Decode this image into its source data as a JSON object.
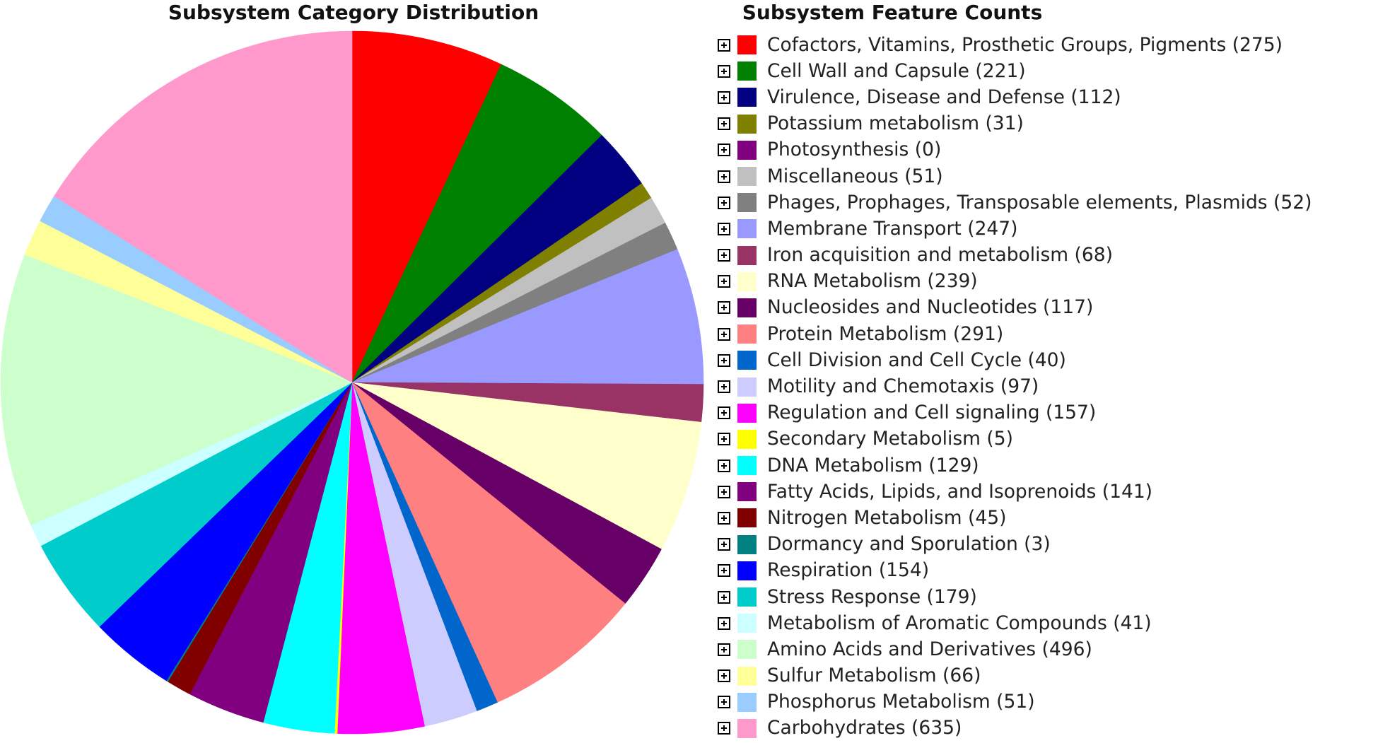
{
  "chart_data": {
    "type": "pie",
    "title": "Subsystem Category Distribution",
    "legend_title": "Subsystem Feature Counts",
    "legend_placement": "right",
    "start_angle_deg": 0,
    "direction": "clockwise",
    "slices": [
      {
        "label": "Cofactors, Vitamins, Prosthetic Groups, Pigments (275)",
        "value": 275,
        "color": "#ff0000"
      },
      {
        "label": "Cell Wall and Capsule (221)",
        "value": 221,
        "color": "#008000"
      },
      {
        "label": "Virulence, Disease and Defense (112)",
        "value": 112,
        "color": "#000080"
      },
      {
        "label": "Potassium metabolism (31)",
        "value": 31,
        "color": "#808000"
      },
      {
        "label": "Photosynthesis (0)",
        "value": 0,
        "color": "#800080"
      },
      {
        "label": "Miscellaneous (51)",
        "value": 51,
        "color": "#c0c0c0"
      },
      {
        "label": "Phages, Prophages, Transposable elements, Plasmids (52)",
        "value": 52,
        "color": "#808080"
      },
      {
        "label": "Membrane Transport (247)",
        "value": 247,
        "color": "#9999ff"
      },
      {
        "label": "Iron acquisition and metabolism (68)",
        "value": 68,
        "color": "#993366"
      },
      {
        "label": "RNA Metabolism (239)",
        "value": 239,
        "color": "#ffffcc"
      },
      {
        "label": "Nucleosides and Nucleotides (117)",
        "value": 117,
        "color": "#660066"
      },
      {
        "label": "Protein Metabolism (291)",
        "value": 291,
        "color": "#ff8080"
      },
      {
        "label": "Cell Division and Cell Cycle (40)",
        "value": 40,
        "color": "#0066cc"
      },
      {
        "label": "Motility and Chemotaxis (97)",
        "value": 97,
        "color": "#ccccff"
      },
      {
        "label": "Regulation and Cell signaling (157)",
        "value": 157,
        "color": "#ff00ff"
      },
      {
        "label": "Secondary Metabolism (5)",
        "value": 5,
        "color": "#ffff00"
      },
      {
        "label": "DNA Metabolism (129)",
        "value": 129,
        "color": "#00ffff"
      },
      {
        "label": "Fatty Acids, Lipids, and Isoprenoids (141)",
        "value": 141,
        "color": "#800080"
      },
      {
        "label": "Nitrogen Metabolism (45)",
        "value": 45,
        "color": "#800000"
      },
      {
        "label": "Dormancy and Sporulation (3)",
        "value": 3,
        "color": "#008080"
      },
      {
        "label": "Respiration (154)",
        "value": 154,
        "color": "#0000ff"
      },
      {
        "label": "Stress Response (179)",
        "value": 179,
        "color": "#00cccc"
      },
      {
        "label": "Metabolism of Aromatic Compounds (41)",
        "value": 41,
        "color": "#ccffff"
      },
      {
        "label": "Amino Acids and Derivatives (496)",
        "value": 496,
        "color": "#ccffcc"
      },
      {
        "label": "Sulfur Metabolism (66)",
        "value": 66,
        "color": "#ffff99"
      },
      {
        "label": "Phosphorus Metabolism (51)",
        "value": 51,
        "color": "#99ccff"
      },
      {
        "label": "Carbohydrates (635)",
        "value": 635,
        "color": "#ff99cc"
      }
    ]
  },
  "icons": {
    "expand": "plus-box-icon"
  }
}
